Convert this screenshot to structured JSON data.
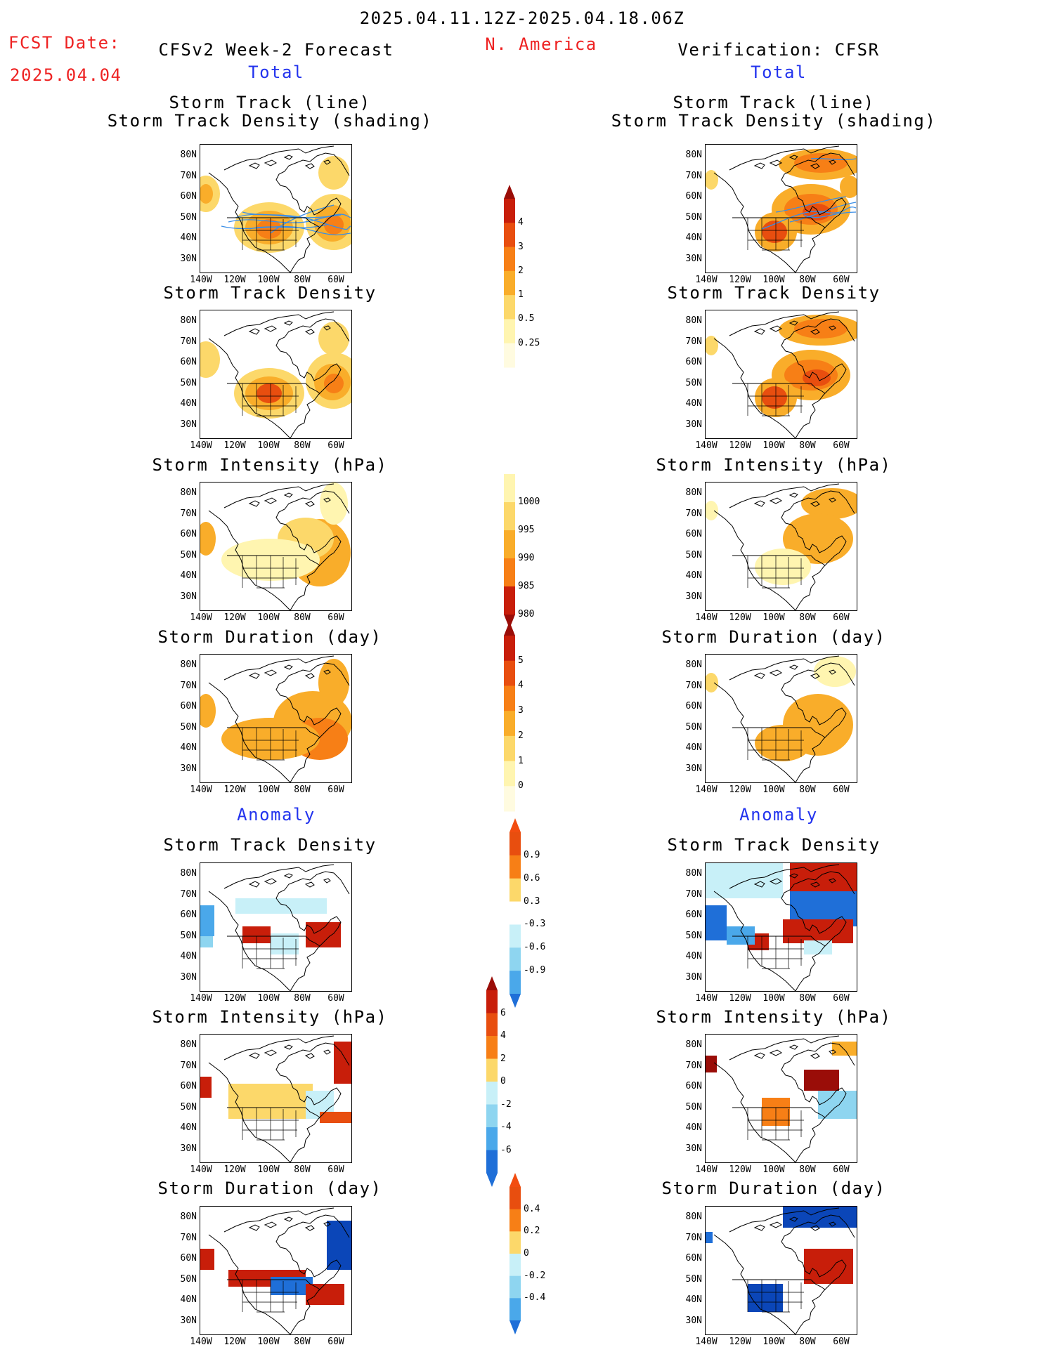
{
  "header": {
    "title": "2025.04.11.12Z-2025.04.18.06Z",
    "region": "N. America",
    "fcst_label": "FCST Date:",
    "fcst_date": "2025.04.04",
    "left_source": "CFSv2 Week-2 Forecast",
    "right_source": "Verification: CFSR"
  },
  "sections": {
    "total": "Total",
    "anomaly": "Anomaly"
  },
  "panel_titles": {
    "track_line": "Storm Track (line)",
    "track_shading": "Storm Track Density (shading)",
    "density": "Storm Track Density",
    "intensity": "Storm Intensity (hPa)",
    "duration": "Storm Duration (day)"
  },
  "axes": {
    "lat": [
      "80N",
      "70N",
      "60N",
      "50N",
      "40N",
      "30N"
    ],
    "lon": [
      "140W",
      "120W",
      "100W",
      "80W",
      "60W"
    ]
  },
  "colorbars": {
    "density_total": [
      "4",
      "3",
      "2",
      "1",
      "0.5",
      "0.25"
    ],
    "intensity_total": [
      "1000",
      "995",
      "990",
      "985",
      "980"
    ],
    "duration_total": [
      "5",
      "4",
      "3",
      "2",
      "1",
      "0"
    ],
    "density_anom": [
      "0.9",
      "0.6",
      "0.3",
      "-0.3",
      "-0.6",
      "-0.9"
    ],
    "intensity_anom": [
      "6",
      "4",
      "2",
      "0",
      "-2",
      "-4",
      "-6"
    ],
    "duration_anom": [
      "0.4",
      "0.2",
      "0",
      "-0.2",
      "-0.4"
    ]
  },
  "colors": {
    "header_red": "#ee2222",
    "section_blue": "#2233ee",
    "warm": [
      "#fff5b0",
      "#fcd86a",
      "#f9ad2a",
      "#f77f16",
      "#e84e0f",
      "#c81e0a",
      "#9a0d08"
    ],
    "cool": [
      "#c8f0f8",
      "#8ed5f0",
      "#4aa8ea",
      "#1f6fd8",
      "#0b46b8"
    ],
    "track_line": "#3a8ee6"
  }
}
